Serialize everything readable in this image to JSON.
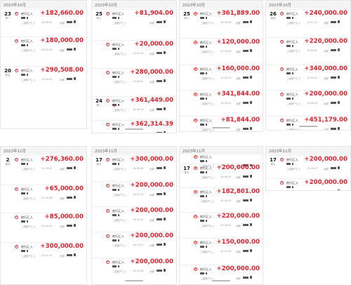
{
  "entry_labels": {
    "name": "他行汇入",
    "cross_border": "二级账户汇入",
    "balance": "余额"
  },
  "panels": [
    {
      "header": "2023年10月",
      "entries": [
        {
          "day": "23",
          "weekday": "周一",
          "amount": "+182,660.00",
          "time": "16:56:19"
        },
        {
          "amount": "+180,000.00",
          "time": "16:32:28"
        },
        {
          "day": "20",
          "weekday": "周五",
          "amount": "+290,508.00",
          "time": "15:04:55"
        }
      ]
    },
    {
      "header": "2023年10月",
      "entries": [
        {
          "day": "25",
          "weekday": "周三",
          "amount": "+81,904.00"
        },
        {
          "amount": "+20,000.00",
          "time": "14:39:13"
        },
        {
          "amount": "+280,000.00",
          "time": "13:48:42"
        },
        {
          "day": "24",
          "weekday": "周二",
          "amount": "+361,449.00",
          "time": "16:36:24"
        },
        {
          "amount": "+362,314.39"
        }
      ]
    },
    {
      "header": "2023年10月",
      "entries": [
        {
          "day": "25",
          "weekday": "周三",
          "amount": "+361,889.00",
          "time": "16:35:46"
        },
        {
          "amount": "+120,000.00",
          "time": "14:18:54"
        },
        {
          "amount": "+160,000.00",
          "time": "14:33:23"
        },
        {
          "amount": "+341,844.00",
          "time": "14:36:10"
        },
        {
          "amount": "+81,844.00"
        }
      ]
    },
    {
      "header": "2023年10月",
      "entries": [
        {
          "day": "26",
          "weekday": "周四",
          "amount": "+240,000.00",
          "time": "15:57:25"
        },
        {
          "amount": "+220,000.00",
          "time": "15:44:55"
        },
        {
          "amount": "+340,000.00",
          "time": "15:20:42"
        },
        {
          "amount": "+200,000.00",
          "time": "14:58:29"
        },
        {
          "amount": "+451,179.00"
        }
      ]
    },
    {
      "header": "2023年11月",
      "entries": [
        {
          "day": "2",
          "weekday": "周四",
          "amount": "+276,360.00",
          "time": "12:53:03"
        },
        {
          "amount": "+65,000.00",
          "time": "12:52:38"
        },
        {
          "amount": "+85,000.00",
          "time": "12:44:55"
        },
        {
          "amount": "+300,000.00",
          "time": "12:41:10"
        }
      ]
    },
    {
      "header": "2023年11月",
      "entries": [
        {
          "day": "17",
          "weekday": "周五",
          "amount": "+300,000.00",
          "time": "16:56:58"
        },
        {
          "amount": "+200,000.00",
          "time": "16:25:17"
        },
        {
          "amount": "+200,000.00",
          "time": "16:20:30"
        },
        {
          "amount": "+200,000.00",
          "time": "16:13:22"
        },
        {
          "amount": "+200,000.00",
          "time": "16:01:08"
        }
      ]
    },
    {
      "header": "2023年11月",
      "entries": [
        {
          "amount": "",
          "time": "16:41:51"
        },
        {
          "day": "17",
          "weekday": "周五",
          "amount": "+200,000.00",
          "time": "16:48:18"
        },
        {
          "amount": "+182,801.00",
          "time": "15:45:35"
        },
        {
          "amount": "+220,000.00",
          "time": "15:26:42"
        },
        {
          "amount": "+150,000.00",
          "time": "15:15:39"
        },
        {
          "amount": "+200,000.00"
        }
      ]
    },
    {
      "header": "2023年11月",
      "entries": [
        {
          "day": "17",
          "weekday": "周五",
          "amount": "+200,000.00",
          "time": "15:20:27"
        },
        {
          "amount": "+200,000.00",
          "time": "15:06:57"
        }
      ]
    }
  ]
}
